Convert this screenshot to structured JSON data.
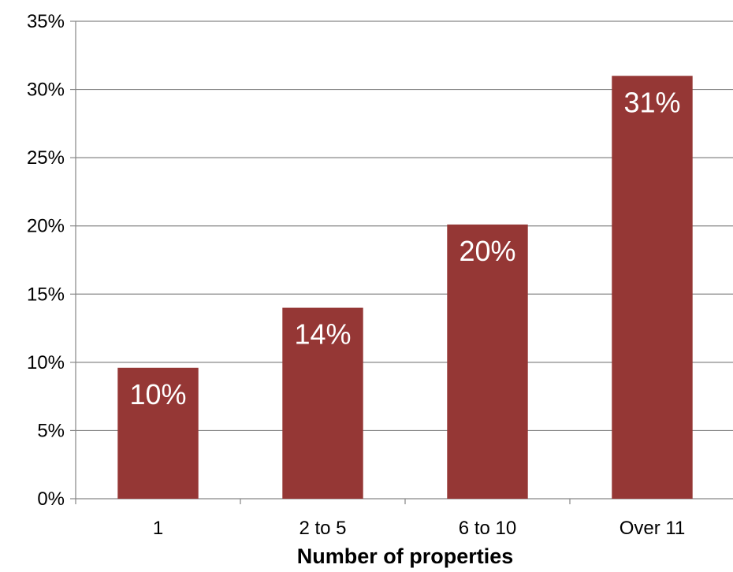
{
  "chart_data": {
    "type": "bar",
    "title": "",
    "xlabel": "Number of properties",
    "ylabel": "",
    "categories": [
      "1",
      "2 to 5",
      "6 to 10",
      "Over 11"
    ],
    "values": [
      9.6,
      14.0,
      20.1,
      31.0
    ],
    "data_labels": [
      "10%",
      "14%",
      "20%",
      "31%"
    ],
    "ylim": [
      0,
      35
    ],
    "yticks": [
      0,
      5,
      10,
      15,
      20,
      25,
      30,
      35
    ],
    "ytick_labels": [
      "0%",
      "5%",
      "10%",
      "15%",
      "20%",
      "25%",
      "30%",
      "35%"
    ],
    "grid": true,
    "legend": "none",
    "bar_color": "#953735",
    "grid_color": "#868686"
  }
}
